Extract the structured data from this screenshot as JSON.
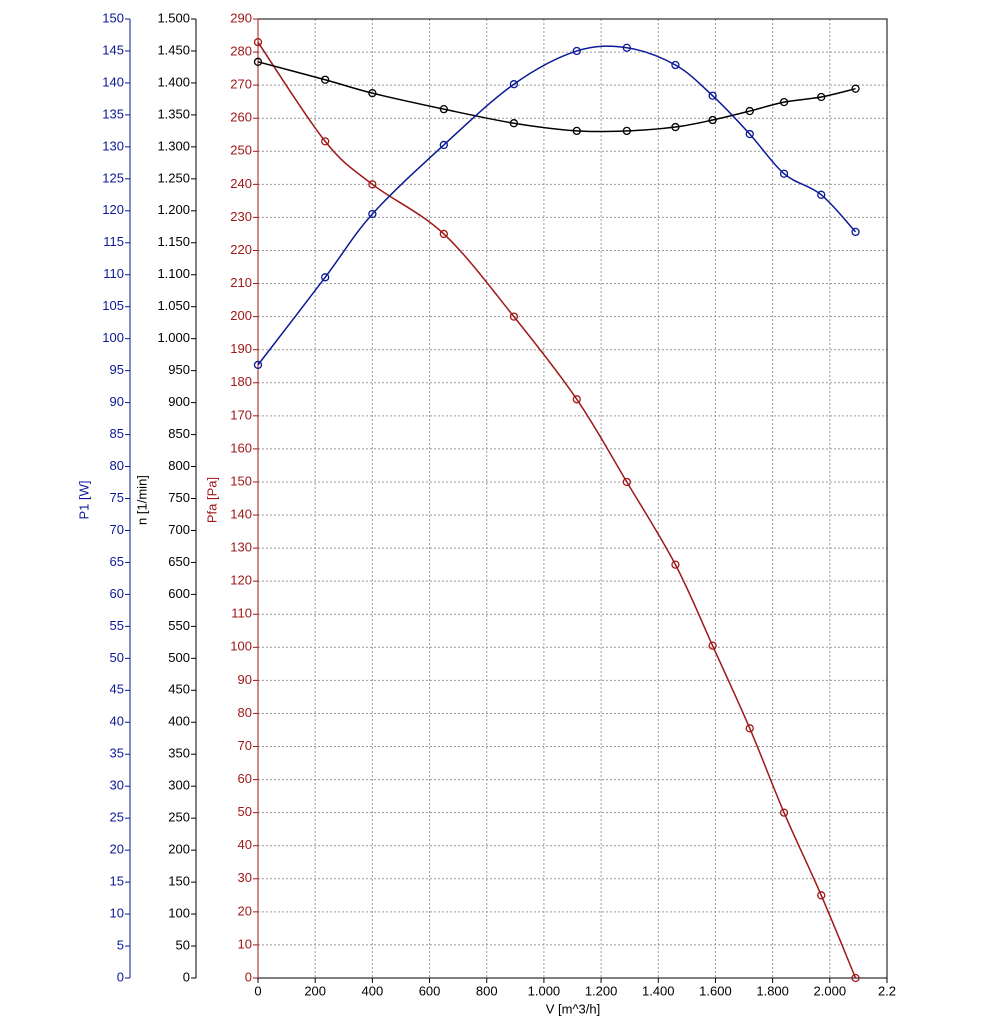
{
  "chart_data": {
    "type": "line",
    "xlabel": "V [m^3/h]",
    "ylabel": "Pfa [Pa]",
    "y2label": "n [1/min]",
    "y3label": "P1 [W]",
    "grid": true,
    "x": [
      0,
      235,
      400,
      650,
      895,
      1115,
      1290,
      1460,
      1590,
      1720,
      1840,
      1970,
      2090
    ],
    "xlim": [
      0,
      2200
    ],
    "xticks": [
      0,
      200,
      400,
      600,
      800,
      {
        "value": 1000,
        "label": "1.000"
      },
      {
        "value": 1200,
        "label": "1.200"
      },
      {
        "value": 1400,
        "label": "1.400"
      },
      {
        "value": 1600,
        "label": "1.600"
      },
      {
        "value": 1800,
        "label": "1.800"
      },
      {
        "value": 2000,
        "label": "2.000"
      },
      {
        "value": 2200,
        "label": "2.2"
      }
    ],
    "ylim": [
      0,
      290
    ],
    "yticks": [
      0,
      10,
      20,
      30,
      40,
      50,
      60,
      70,
      80,
      90,
      100,
      110,
      120,
      130,
      140,
      150,
      160,
      170,
      180,
      190,
      200,
      210,
      220,
      230,
      240,
      250,
      260,
      270,
      280,
      290
    ],
    "y2lim": [
      0,
      1500
    ],
    "y2ticks": [
      0,
      50,
      100,
      150,
      200,
      250,
      300,
      350,
      400,
      450,
      500,
      550,
      600,
      650,
      700,
      750,
      800,
      850,
      900,
      950,
      {
        "value": 1000,
        "label": "1.000"
      },
      {
        "value": 1050,
        "label": "1.050"
      },
      {
        "value": 1100,
        "label": "1.100"
      },
      {
        "value": 1150,
        "label": "1.150"
      },
      {
        "value": 1200,
        "label": "1.200"
      },
      {
        "value": 1250,
        "label": "1.250"
      },
      {
        "value": 1300,
        "label": "1.300"
      },
      {
        "value": 1350,
        "label": "1.350"
      },
      {
        "value": 1400,
        "label": "1.400"
      },
      {
        "value": 1450,
        "label": "1.450"
      },
      {
        "value": 1500,
        "label": "1.500"
      }
    ],
    "y3lim": [
      0,
      150
    ],
    "y3ticks": [
      0,
      5,
      10,
      15,
      20,
      25,
      30,
      35,
      40,
      45,
      50,
      55,
      60,
      65,
      70,
      75,
      80,
      85,
      90,
      95,
      100,
      105,
      110,
      115,
      120,
      125,
      130,
      135,
      140,
      145,
      150
    ],
    "series": [
      {
        "color": "#a01818",
        "axis": "y",
        "values": [
          283,
          253,
          240,
          225,
          200,
          175,
          150,
          125,
          100.5,
          75.5,
          50,
          25,
          0
        ]
      },
      {
        "color": "#000000",
        "axis": "y2",
        "values": [
          1433,
          1405,
          1384,
          1359,
          1337,
          1325,
          1325,
          1331,
          1342,
          1356,
          1370,
          1378,
          1391
        ]
      },
      {
        "color": "#0a1a96",
        "axis": "y3",
        "values": [
          95.9,
          109.6,
          119.5,
          130.3,
          139.8,
          145,
          145.5,
          142.8,
          138,
          132,
          125.8,
          122.5,
          116.7
        ]
      }
    ]
  }
}
